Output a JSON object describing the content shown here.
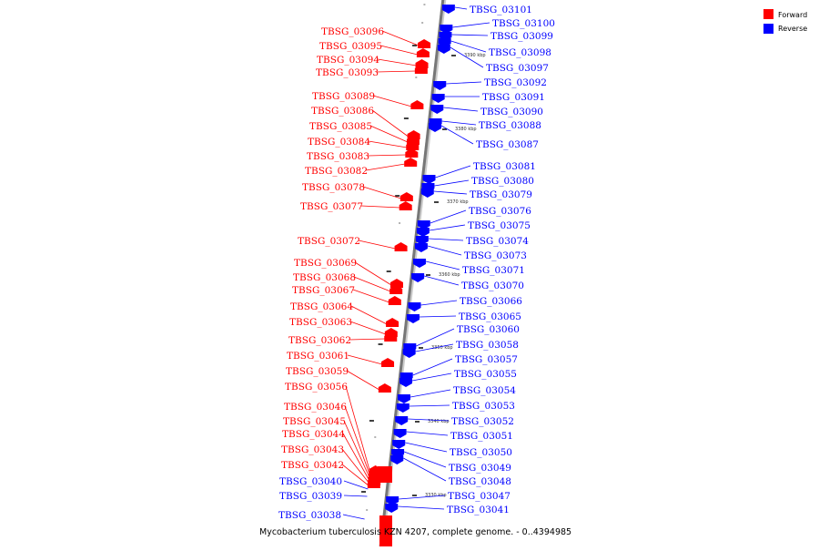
{
  "legend": {
    "forward_label": "Forward",
    "reverse_label": "Reverse",
    "forward_color": "#ff0000",
    "reverse_color": "#0000ff"
  },
  "caption": "Mycobacterium tuberculosis KZN 4207, complete genome. - 0..4394985",
  "axis": {
    "ticks": [
      "3390 kbp",
      "3380 kbp",
      "3370 kbp",
      "3360 kbp",
      "3350 kbp",
      "3340 kbp",
      "3330 kbp"
    ]
  },
  "forward_genes": [
    "TBSG_03096",
    "TBSG_03095",
    "TBSG_03094",
    "TBSG_03093",
    "TBSG_03089",
    "TBSG_03086",
    "TBSG_03085",
    "TBSG_03084",
    "TBSG_03083",
    "TBSG_03082",
    "TBSG_03078",
    "TBSG_03077",
    "TBSG_03072",
    "TBSG_03069",
    "TBSG_03068",
    "TBSG_03067",
    "TBSG_03064",
    "TBSG_03063",
    "TBSG_03062",
    "TBSG_03061",
    "TBSG_03059",
    "TBSG_03056",
    "TBSG_03046",
    "TBSG_03045",
    "TBSG_03044",
    "TBSG_03043",
    "TBSG_03042"
  ],
  "reverse_genes_left": [
    "TBSG_03040",
    "TBSG_03039",
    "TBSG_03038"
  ],
  "reverse_genes": [
    "TBSG_03101",
    "TBSG_03100",
    "TBSG_03099",
    "TBSG_03098",
    "TBSG_03097",
    "TBSG_03092",
    "TBSG_03091",
    "TBSG_03090",
    "TBSG_03088",
    "TBSG_03087",
    "TBSG_03081",
    "TBSG_03080",
    "TBSG_03079",
    "TBSG_03076",
    "TBSG_03075",
    "TBSG_03074",
    "TBSG_03073",
    "TBSG_03071",
    "TBSG_03070",
    "TBSG_03066",
    "TBSG_03065",
    "TBSG_03060",
    "TBSG_03058",
    "TBSG_03057",
    "TBSG_03055",
    "TBSG_03054",
    "TBSG_03053",
    "TBSG_03052",
    "TBSG_03051",
    "TBSG_03050",
    "TBSG_03049",
    "TBSG_03048",
    "TBSG_03047",
    "TBSG_03041"
  ]
}
